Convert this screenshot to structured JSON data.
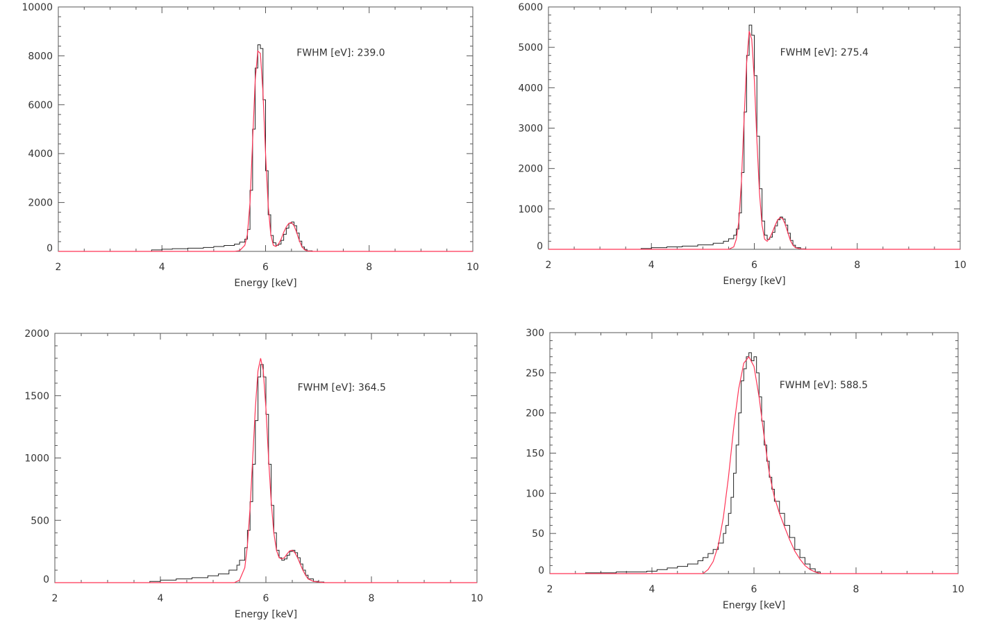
{
  "colors": {
    "histogram": "#222222",
    "fit": "#ff3355"
  },
  "chart_data": [
    {
      "type": "line",
      "xlabel": "Energy [keV]",
      "ylabel": "",
      "xlim": [
        2,
        10
      ],
      "ylim": [
        0,
        10000
      ],
      "xticks": [
        2,
        4,
        6,
        8,
        10
      ],
      "yticks": [
        0,
        2000,
        4000,
        6000,
        8000,
        10000
      ],
      "annotation": "FWHM [eV]: 239.0",
      "series": [
        {
          "kind": "histogram",
          "x": [
            3.5,
            3.8,
            4.0,
            4.2,
            4.5,
            4.8,
            5.0,
            5.2,
            5.4,
            5.5,
            5.6,
            5.65,
            5.7,
            5.75,
            5.8,
            5.85,
            5.9,
            5.95,
            6.0,
            6.05,
            6.1,
            6.15,
            6.2,
            6.25,
            6.3,
            6.35,
            6.4,
            6.45,
            6.5,
            6.55,
            6.6,
            6.65,
            6.7,
            6.75,
            6.8,
            6.9
          ],
          "y": [
            0,
            60,
            90,
            110,
            130,
            160,
            200,
            240,
            300,
            380,
            500,
            900,
            2500,
            5000,
            7500,
            8450,
            8300,
            6200,
            3300,
            1500,
            650,
            350,
            250,
            300,
            450,
            700,
            950,
            1150,
            1200,
            1050,
            750,
            420,
            180,
            80,
            20,
            0
          ]
        },
        {
          "kind": "fit",
          "x": [
            2.0,
            5.4,
            5.5,
            5.6,
            5.65,
            5.7,
            5.75,
            5.8,
            5.85,
            5.9,
            5.95,
            6.0,
            6.05,
            6.1,
            6.15,
            6.2,
            6.25,
            6.3,
            6.35,
            6.4,
            6.45,
            6.5,
            6.55,
            6.6,
            6.65,
            6.7,
            6.75,
            6.8,
            6.9,
            10.0
          ],
          "y": [
            0,
            0,
            30,
            250,
            700,
            2000,
            4500,
            7000,
            8200,
            8100,
            6500,
            4000,
            1900,
            700,
            250,
            200,
            300,
            500,
            780,
            1000,
            1150,
            1180,
            1050,
            780,
            450,
            200,
            70,
            20,
            0,
            0
          ]
        }
      ]
    },
    {
      "type": "line",
      "xlabel": "Energy [keV]",
      "ylabel": "",
      "xlim": [
        2,
        10
      ],
      "ylim": [
        0,
        6000
      ],
      "xticks": [
        2,
        4,
        6,
        8,
        10
      ],
      "yticks": [
        0,
        1000,
        2000,
        3000,
        4000,
        5000,
        6000
      ],
      "annotation": "FWHM [eV]: 275.4",
      "series": [
        {
          "kind": "histogram",
          "x": [
            3.5,
            3.8,
            4.0,
            4.3,
            4.6,
            4.9,
            5.2,
            5.4,
            5.5,
            5.6,
            5.65,
            5.7,
            5.75,
            5.8,
            5.85,
            5.9,
            5.95,
            6.0,
            6.05,
            6.1,
            6.15,
            6.2,
            6.25,
            6.3,
            6.35,
            6.4,
            6.45,
            6.5,
            6.55,
            6.6,
            6.65,
            6.7,
            6.75,
            6.8,
            6.9,
            7.0
          ],
          "y": [
            0,
            20,
            40,
            60,
            80,
            110,
            150,
            200,
            260,
            350,
            500,
            900,
            1900,
            3400,
            4800,
            5550,
            5300,
            4300,
            2800,
            1500,
            700,
            350,
            250,
            300,
            420,
            580,
            730,
            800,
            750,
            600,
            400,
            220,
            100,
            40,
            10,
            0
          ]
        },
        {
          "kind": "fit",
          "x": [
            2.0,
            5.5,
            5.6,
            5.65,
            5.7,
            5.75,
            5.8,
            5.85,
            5.9,
            5.95,
            6.0,
            6.05,
            6.1,
            6.15,
            6.2,
            6.25,
            6.3,
            6.35,
            6.4,
            6.45,
            6.5,
            6.55,
            6.6,
            6.65,
            6.7,
            6.75,
            6.8,
            6.9,
            7.0,
            10.0
          ],
          "y": [
            0,
            0,
            60,
            250,
            700,
            1700,
            3200,
            4600,
            5400,
            5200,
            4200,
            2700,
            1400,
            600,
            250,
            200,
            280,
            420,
            580,
            720,
            790,
            760,
            620,
            420,
            220,
            100,
            40,
            10,
            0,
            0
          ]
        }
      ]
    },
    {
      "type": "line",
      "xlabel": "Energy [keV]",
      "ylabel": "",
      "xlim": [
        2,
        10
      ],
      "ylim": [
        0,
        2000
      ],
      "xticks": [
        2,
        4,
        6,
        8,
        10
      ],
      "yticks": [
        0,
        500,
        1000,
        1500,
        2000
      ],
      "annotation": "FWHM [eV]: 364.5",
      "series": [
        {
          "kind": "histogram",
          "x": [
            3.5,
            3.8,
            4.0,
            4.3,
            4.6,
            4.9,
            5.1,
            5.3,
            5.45,
            5.5,
            5.6,
            5.65,
            5.7,
            5.75,
            5.8,
            5.85,
            5.9,
            5.95,
            6.0,
            6.05,
            6.1,
            6.15,
            6.2,
            6.25,
            6.3,
            6.35,
            6.4,
            6.45,
            6.5,
            6.55,
            6.6,
            6.65,
            6.7,
            6.75,
            6.8,
            6.9,
            7.0,
            7.1
          ],
          "y": [
            0,
            10,
            20,
            30,
            40,
            55,
            70,
            100,
            140,
            180,
            280,
            420,
            650,
            950,
            1300,
            1650,
            1750,
            1650,
            1350,
            950,
            620,
            400,
            260,
            200,
            180,
            190,
            220,
            250,
            260,
            240,
            200,
            150,
            100,
            60,
            30,
            10,
            5,
            0
          ]
        },
        {
          "kind": "fit",
          "x": [
            2.0,
            5.4,
            5.5,
            5.6,
            5.65,
            5.7,
            5.75,
            5.8,
            5.85,
            5.9,
            5.95,
            6.0,
            6.05,
            6.1,
            6.15,
            6.2,
            6.25,
            6.3,
            6.35,
            6.4,
            6.45,
            6.5,
            6.55,
            6.6,
            6.65,
            6.7,
            6.75,
            6.8,
            6.9,
            7.0,
            7.1,
            10.0
          ],
          "y": [
            0,
            0,
            20,
            120,
            300,
            600,
            1000,
            1400,
            1700,
            1800,
            1700,
            1400,
            1000,
            650,
            400,
            260,
            200,
            190,
            200,
            230,
            255,
            260,
            240,
            200,
            150,
            100,
            60,
            30,
            10,
            5,
            0,
            0
          ]
        }
      ]
    },
    {
      "type": "line",
      "xlabel": "Energy [keV]",
      "ylabel": "",
      "xlim": [
        2,
        10
      ],
      "ylim": [
        0,
        300
      ],
      "xticks": [
        2,
        4,
        6,
        8,
        10
      ],
      "yticks": [
        0,
        50,
        100,
        150,
        200,
        250,
        300
      ],
      "annotation": "FWHM [eV]: 588.5",
      "series": [
        {
          "kind": "histogram",
          "x": [
            2.7,
            3.0,
            3.3,
            3.6,
            3.9,
            4.1,
            4.3,
            4.5,
            4.7,
            4.9,
            5.0,
            5.1,
            5.2,
            5.3,
            5.4,
            5.45,
            5.5,
            5.55,
            5.6,
            5.65,
            5.7,
            5.75,
            5.8,
            5.85,
            5.9,
            5.95,
            6.0,
            6.05,
            6.1,
            6.15,
            6.2,
            6.25,
            6.3,
            6.35,
            6.4,
            6.5,
            6.6,
            6.7,
            6.8,
            6.9,
            7.0,
            7.1,
            7.2,
            7.3
          ],
          "y": [
            1,
            1,
            2,
            2,
            3,
            5,
            7,
            9,
            12,
            16,
            20,
            25,
            30,
            38,
            50,
            60,
            75,
            95,
            125,
            160,
            200,
            240,
            255,
            270,
            275,
            265,
            270,
            250,
            220,
            190,
            160,
            140,
            120,
            105,
            90,
            75,
            60,
            45,
            30,
            20,
            12,
            6,
            2,
            0
          ]
        },
        {
          "kind": "fit",
          "x": [
            2.0,
            5.0,
            5.1,
            5.2,
            5.3,
            5.4,
            5.5,
            5.6,
            5.7,
            5.8,
            5.9,
            6.0,
            6.1,
            6.2,
            6.3,
            6.4,
            6.5,
            6.6,
            6.7,
            6.8,
            6.9,
            7.0,
            7.1,
            7.2,
            7.3,
            10.0
          ],
          "y": [
            0,
            0,
            5,
            15,
            35,
            70,
            120,
            180,
            230,
            262,
            270,
            258,
            220,
            170,
            125,
            95,
            75,
            58,
            42,
            28,
            18,
            10,
            5,
            2,
            0,
            0
          ]
        }
      ]
    }
  ]
}
